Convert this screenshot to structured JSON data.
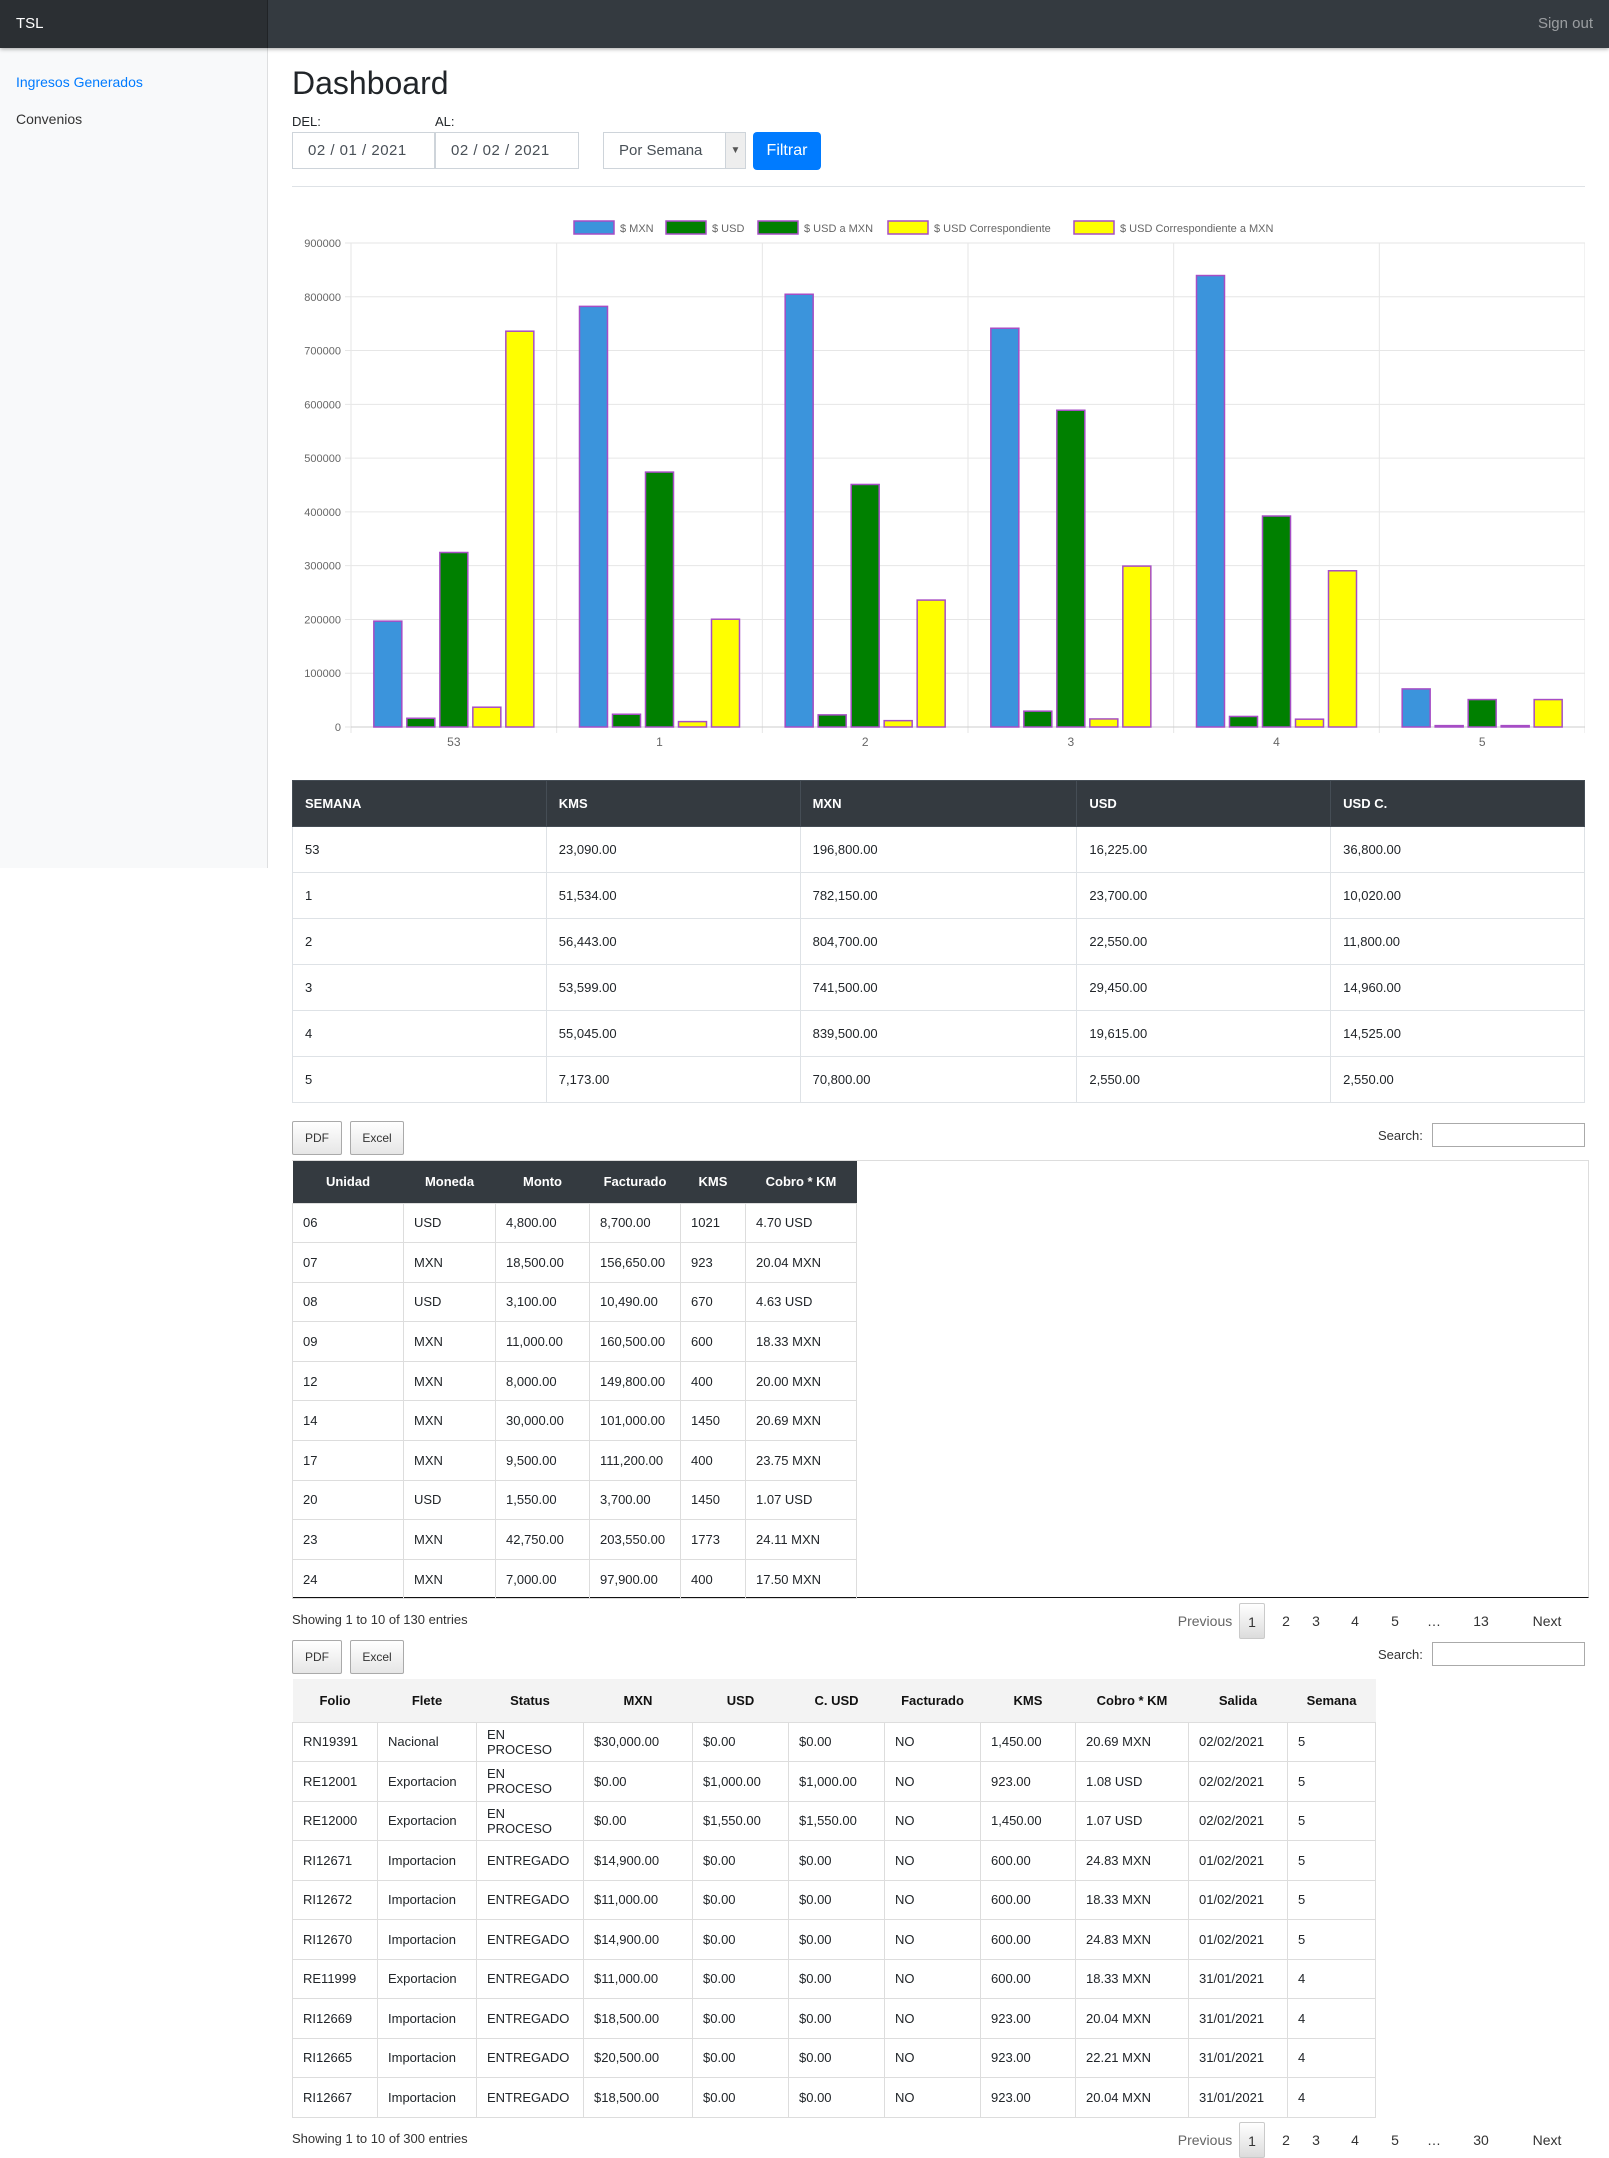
{
  "app": {
    "brand": "TSL",
    "signout": "Sign out"
  },
  "sidebar": {
    "items": [
      {
        "label": "Ingresos Generados",
        "active": true
      },
      {
        "label": "Convenios",
        "active": false
      }
    ]
  },
  "page": {
    "title": "Dashboard"
  },
  "filters": {
    "del_label": "DEL:",
    "del_value": "02 / 01 / 2021",
    "al_label": "AL:",
    "al_value": "02 / 02 / 2021",
    "period_select": "Por Semana",
    "filter_button": "Filtrar"
  },
  "chart_data": {
    "type": "bar",
    "categories": [
      "53",
      "1",
      "2",
      "3",
      "4",
      "5"
    ],
    "series": [
      {
        "name": "$ MXN",
        "color": "#3b94dc",
        "values": [
          196800,
          782150,
          804700,
          741500,
          839500,
          70800
        ]
      },
      {
        "name": "$ USD",
        "color": "#008000",
        "values": [
          16225,
          23700,
          22550,
          29450,
          19615,
          2550
        ]
      },
      {
        "name": "$ USD a MXN",
        "color": "#008000",
        "values": [
          324500,
          474000,
          451000,
          589000,
          392300,
          51000
        ]
      },
      {
        "name": "$ USD Correspondiente",
        "color": "#ffff00",
        "values": [
          36800,
          10020,
          11800,
          14960,
          14525,
          2550
        ]
      },
      {
        "name": "$ USD Correspondiente a MXN",
        "color": "#ffff00",
        "values": [
          736000,
          200400,
          236000,
          299200,
          290500,
          51000
        ]
      }
    ],
    "ylim": [
      0,
      900000
    ],
    "yticks": [
      "900000",
      "800000",
      "700000",
      "600000",
      "500000",
      "400000",
      "300000",
      "200000",
      "100000",
      "0"
    ],
    "legend_position": "top",
    "grid": true
  },
  "summary_table": {
    "headers": [
      "SEMANA",
      "KMS",
      "MXN",
      "USD",
      "USD C."
    ],
    "rows": [
      [
        "53",
        "23,090.00",
        "196,800.00",
        "16,225.00",
        "36,800.00"
      ],
      [
        "1",
        "51,534.00",
        "782,150.00",
        "23,700.00",
        "10,020.00"
      ],
      [
        "2",
        "56,443.00",
        "804,700.00",
        "22,550.00",
        "11,800.00"
      ],
      [
        "3",
        "53,599.00",
        "741,500.00",
        "29,450.00",
        "14,960.00"
      ],
      [
        "4",
        "55,045.00",
        "839,500.00",
        "19,615.00",
        "14,525.00"
      ],
      [
        "5",
        "7,173.00",
        "70,800.00",
        "2,550.00",
        "2,550.00"
      ]
    ]
  },
  "units_section": {
    "pdf_button": "PDF",
    "excel_button": "Excel",
    "search_label": "Search:",
    "headers": [
      "Unidad",
      "Moneda",
      "Monto",
      "Facturado",
      "KMS",
      "Cobro * KM"
    ],
    "rows": [
      [
        "06",
        "USD",
        "4,800.00",
        "8,700.00",
        "1021",
        "4.70 USD"
      ],
      [
        "07",
        "MXN",
        "18,500.00",
        "156,650.00",
        "923",
        "20.04 MXN"
      ],
      [
        "08",
        "USD",
        "3,100.00",
        "10,490.00",
        "670",
        "4.63 USD"
      ],
      [
        "09",
        "MXN",
        "11,000.00",
        "160,500.00",
        "600",
        "18.33 MXN"
      ],
      [
        "12",
        "MXN",
        "8,000.00",
        "149,800.00",
        "400",
        "20.00 MXN"
      ],
      [
        "14",
        "MXN",
        "30,000.00",
        "101,000.00",
        "1450",
        "20.69 MXN"
      ],
      [
        "17",
        "MXN",
        "9,500.00",
        "111,200.00",
        "400",
        "23.75 MXN"
      ],
      [
        "20",
        "USD",
        "1,550.00",
        "3,700.00",
        "1450",
        "1.07 USD"
      ],
      [
        "23",
        "MXN",
        "42,750.00",
        "203,550.00",
        "1773",
        "24.11 MXN"
      ],
      [
        "24",
        "MXN",
        "7,000.00",
        "97,900.00",
        "400",
        "17.50 MXN"
      ]
    ],
    "info": "Showing 1 to 10 of 130 entries",
    "pager": {
      "previous": "Previous",
      "pages": [
        "1",
        "2",
        "3",
        "4",
        "5",
        "…",
        "13"
      ],
      "next": "Next"
    }
  },
  "folios_section": {
    "pdf_button": "PDF",
    "excel_button": "Excel",
    "search_label": "Search:",
    "headers": [
      "Folio",
      "Flete",
      "Status",
      "MXN",
      "USD",
      "C. USD",
      "Facturado",
      "KMS",
      "Cobro * KM",
      "Salida",
      "Semana"
    ],
    "rows": [
      [
        "RN19391",
        "Nacional",
        "EN PROCESO",
        "$30,000.00",
        "$0.00",
        "$0.00",
        "NO",
        "1,450.00",
        "20.69 MXN",
        "02/02/2021",
        "5"
      ],
      [
        "RE12001",
        "Exportacion",
        "EN PROCESO",
        "$0.00",
        "$1,000.00",
        "$1,000.00",
        "NO",
        "923.00",
        "1.08 USD",
        "02/02/2021",
        "5"
      ],
      [
        "RE12000",
        "Exportacion",
        "EN PROCESO",
        "$0.00",
        "$1,550.00",
        "$1,550.00",
        "NO",
        "1,450.00",
        "1.07 USD",
        "02/02/2021",
        "5"
      ],
      [
        "RI12671",
        "Importacion",
        "ENTREGADO",
        "$14,900.00",
        "$0.00",
        "$0.00",
        "NO",
        "600.00",
        "24.83 MXN",
        "01/02/2021",
        "5"
      ],
      [
        "RI12672",
        "Importacion",
        "ENTREGADO",
        "$11,000.00",
        "$0.00",
        "$0.00",
        "NO",
        "600.00",
        "18.33 MXN",
        "01/02/2021",
        "5"
      ],
      [
        "RI12670",
        "Importacion",
        "ENTREGADO",
        "$14,900.00",
        "$0.00",
        "$0.00",
        "NO",
        "600.00",
        "24.83 MXN",
        "01/02/2021",
        "5"
      ],
      [
        "RE11999",
        "Exportacion",
        "ENTREGADO",
        "$11,000.00",
        "$0.00",
        "$0.00",
        "NO",
        "600.00",
        "18.33 MXN",
        "31/01/2021",
        "4"
      ],
      [
        "RI12669",
        "Importacion",
        "ENTREGADO",
        "$18,500.00",
        "$0.00",
        "$0.00",
        "NO",
        "923.00",
        "20.04 MXN",
        "31/01/2021",
        "4"
      ],
      [
        "RI12665",
        "Importacion",
        "ENTREGADO",
        "$20,500.00",
        "$0.00",
        "$0.00",
        "NO",
        "923.00",
        "22.21 MXN",
        "31/01/2021",
        "4"
      ],
      [
        "RI12667",
        "Importacion",
        "ENTREGADO",
        "$18,500.00",
        "$0.00",
        "$0.00",
        "NO",
        "923.00",
        "20.04 MXN",
        "31/01/2021",
        "4"
      ]
    ],
    "info": "Showing 1 to 10 of 300 entries",
    "pager": {
      "previous": "Previous",
      "pages": [
        "1",
        "2",
        "3",
        "4",
        "5",
        "…",
        "30"
      ],
      "next": "Next"
    }
  }
}
